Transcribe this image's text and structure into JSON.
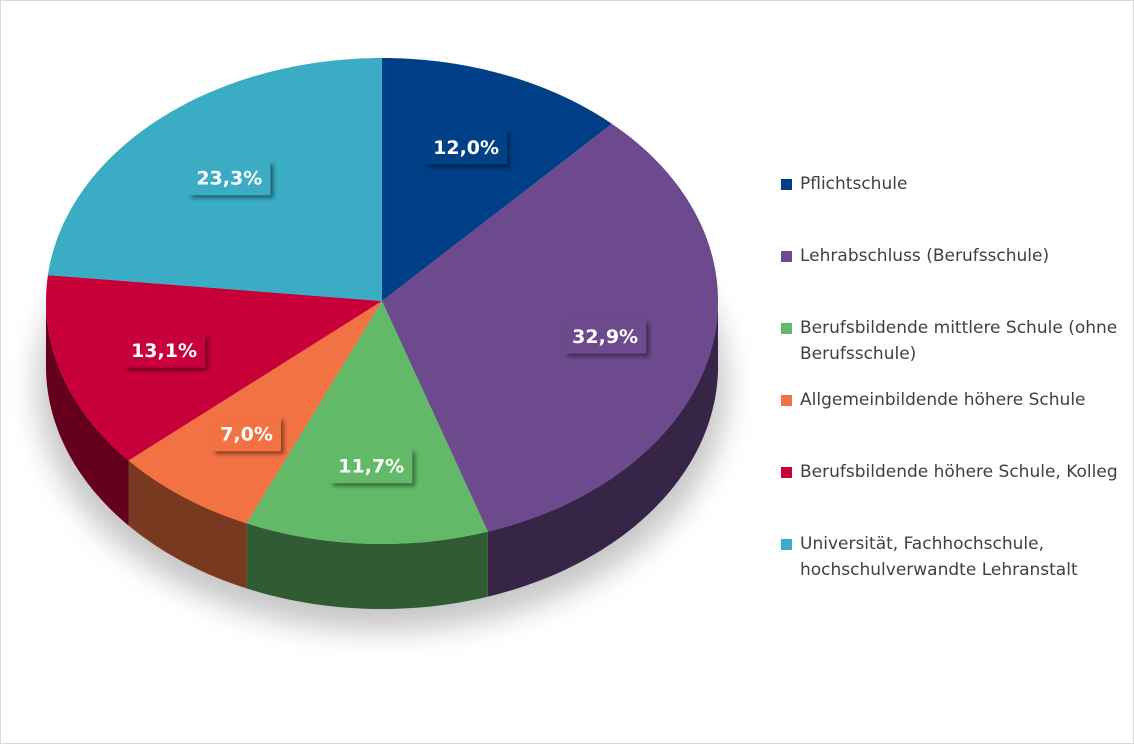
{
  "chart_data": {
    "type": "pie",
    "categories": [
      "Pflichtschule",
      "Lehrabschluss (Berufsschule)",
      "Berufsbildende mittlere Schule (ohne Berufsschule)",
      "Allgemeinbildende höhere Schule",
      "Berufsbildende höhere Schule, Kolleg",
      "Universität, Fachhochschule, hochschulverwandte Lehranstalt"
    ],
    "values": [
      12.0,
      32.9,
      11.7,
      7.0,
      13.1,
      23.3
    ],
    "value_labels": [
      "12,0%",
      "32,9%",
      "11,7%",
      "7,0%",
      "13,1%",
      "23,3%"
    ],
    "colors": [
      "#003f87",
      "#6d4a8e",
      "#62b967",
      "#f37243",
      "#c8003a",
      "#3aacc3"
    ],
    "legend": "right"
  }
}
